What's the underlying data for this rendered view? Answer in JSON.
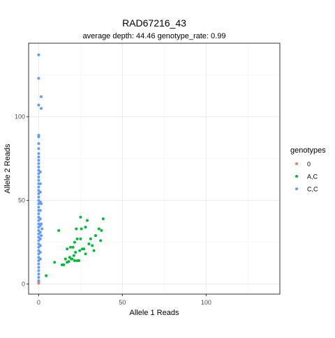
{
  "chart_data": {
    "type": "scatter",
    "title": "RAD67216_43",
    "subtitle": "average depth:  44.46  genotype_rate:  0.99",
    "xlabel": "Allele 1 Reads",
    "ylabel": "Allele 2 Reads",
    "xlim": [
      -6,
      144
    ],
    "ylim": [
      -6,
      144
    ],
    "x_ticks": [
      0,
      50,
      100
    ],
    "y_ticks": [
      0,
      50,
      100
    ],
    "x_tick_labels": [
      "0",
      "50",
      "100"
    ],
    "y_tick_labels": [
      "0",
      "50",
      "100"
    ],
    "grid": true,
    "legend": {
      "title": "genotypes",
      "position": "right"
    },
    "series": [
      {
        "name": "0",
        "color": "#F8766D",
        "points": [
          [
            0,
            0.5
          ],
          [
            0,
            1.3
          ]
        ]
      },
      {
        "name": "A,C",
        "color": "#00BA38",
        "points": [
          [
            4.5,
            5
          ],
          [
            9.5,
            13
          ],
          [
            12,
            32
          ],
          [
            14,
            11.5
          ],
          [
            15,
            11.5
          ],
          [
            16,
            15
          ],
          [
            17,
            21
          ],
          [
            17,
            13
          ],
          [
            18,
            13.5
          ],
          [
            18.5,
            16
          ],
          [
            19,
            22
          ],
          [
            19.5,
            15
          ],
          [
            20,
            15
          ],
          [
            20.5,
            22
          ],
          [
            21,
            17
          ],
          [
            21.5,
            14
          ],
          [
            21.5,
            25
          ],
          [
            22,
            19
          ],
          [
            22.5,
            33
          ],
          [
            23,
            14
          ],
          [
            23,
            27
          ],
          [
            24,
            14
          ],
          [
            24.5,
            20
          ],
          [
            25,
            27
          ],
          [
            25,
            40
          ],
          [
            25.5,
            33
          ],
          [
            26,
            21
          ],
          [
            27,
            21
          ],
          [
            28,
            34
          ],
          [
            28,
            18
          ],
          [
            29,
            38
          ],
          [
            30,
            24
          ],
          [
            31,
            27
          ],
          [
            32,
            23
          ],
          [
            33,
            20
          ],
          [
            34,
            29
          ],
          [
            36,
            33
          ],
          [
            37,
            26
          ],
          [
            37.5,
            32
          ],
          [
            38.5,
            39
          ]
        ]
      },
      {
        "name": "C,C",
        "color": "#619CFF",
        "points": [
          [
            0,
            137
          ],
          [
            0,
            123
          ],
          [
            1.5,
            112
          ],
          [
            0,
            107
          ],
          [
            1.5,
            105
          ],
          [
            0,
            89
          ],
          [
            0,
            88
          ],
          [
            0,
            84
          ],
          [
            0,
            81
          ],
          [
            0,
            78
          ],
          [
            0,
            76
          ],
          [
            0,
            74
          ],
          [
            0,
            72
          ],
          [
            0,
            70
          ],
          [
            0,
            68
          ],
          [
            0,
            66
          ],
          [
            0,
            64
          ],
          [
            0,
            62
          ],
          [
            0,
            60
          ],
          [
            0,
            58
          ],
          [
            0,
            56
          ],
          [
            0,
            54
          ],
          [
            0,
            52
          ],
          [
            0,
            50
          ],
          [
            0,
            48
          ],
          [
            0,
            46
          ],
          [
            0,
            44
          ],
          [
            0,
            42
          ],
          [
            0,
            40
          ],
          [
            0,
            38
          ],
          [
            0,
            36
          ],
          [
            0,
            34
          ],
          [
            0,
            32
          ],
          [
            0,
            30
          ],
          [
            0,
            28
          ],
          [
            0,
            26
          ],
          [
            0,
            24
          ],
          [
            0,
            22
          ],
          [
            0,
            20
          ],
          [
            0,
            18
          ],
          [
            0,
            16
          ],
          [
            0,
            14
          ],
          [
            0,
            12
          ],
          [
            0,
            10
          ],
          [
            0,
            8
          ],
          [
            0,
            6
          ],
          [
            0,
            4
          ],
          [
            0,
            2
          ],
          [
            1,
            67
          ],
          [
            1,
            60
          ],
          [
            1,
            55
          ],
          [
            1,
            49
          ],
          [
            1,
            44
          ],
          [
            1,
            39
          ],
          [
            1,
            35
          ],
          [
            1,
            31
          ],
          [
            1,
            27
          ],
          [
            1,
            23
          ],
          [
            1,
            19
          ],
          [
            1,
            15
          ],
          [
            1.5,
            48
          ],
          [
            1.5,
            36
          ],
          [
            1.5,
            29
          ],
          [
            2,
            33
          ]
        ]
      }
    ]
  }
}
